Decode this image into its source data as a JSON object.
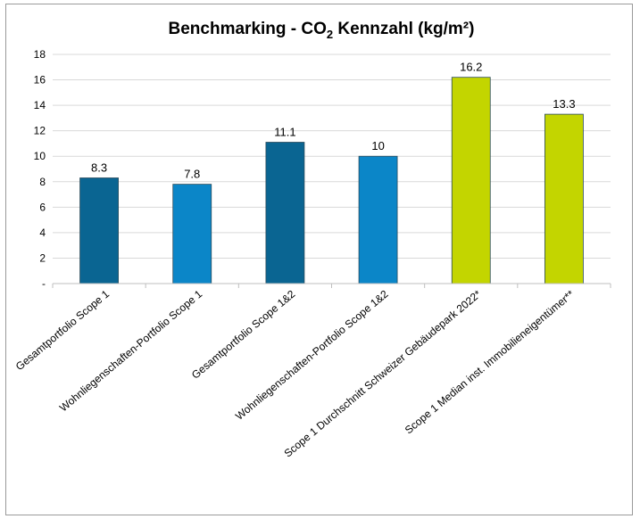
{
  "chart_data": {
    "type": "bar",
    "title": {
      "prefix": "Benchmarking - CO",
      "subscript": "2",
      "suffix": " Kennzahl (kg/m²)"
    },
    "xlabel": "",
    "ylabel": "",
    "ylim": [
      0,
      18
    ],
    "yticks": [
      {
        "value": 0,
        "label": "-"
      },
      {
        "value": 2,
        "label": "2"
      },
      {
        "value": 4,
        "label": "4"
      },
      {
        "value": 6,
        "label": "6"
      },
      {
        "value": 8,
        "label": "8"
      },
      {
        "value": 10,
        "label": "10"
      },
      {
        "value": 12,
        "label": "12"
      },
      {
        "value": 14,
        "label": "14"
      },
      {
        "value": 16,
        "label": "16"
      },
      {
        "value": 18,
        "label": "18"
      }
    ],
    "grid": true,
    "legend": "none",
    "categories": [
      "Gesamtportfolio Scope 1",
      "Wohnliegenschaften-Portfolio Scope 1",
      "Gesamtportfolio Scope 1&2",
      "Wohnliegenschaften-Portfolio Scope 1&2",
      "Scope 1 Durchschnitt Schweizer Gebäudepark 2022*",
      "Scope 1 Median inst. Immobilieneigentümer**"
    ],
    "values": [
      8.3,
      7.8,
      11.1,
      10,
      16.2,
      13.3
    ],
    "value_labels": [
      "8.3",
      "7.8",
      "11.1",
      "10",
      "16.2",
      "13.3"
    ],
    "bar_colors": [
      "#0a6592",
      "#0b86c8",
      "#0a6592",
      "#0b86c8",
      "#c3d500",
      "#c3d500"
    ],
    "bar_stroke": "#2a4a5a",
    "grid_color": "#d9d9d9",
    "axis_color": "#bfbfbf"
  }
}
